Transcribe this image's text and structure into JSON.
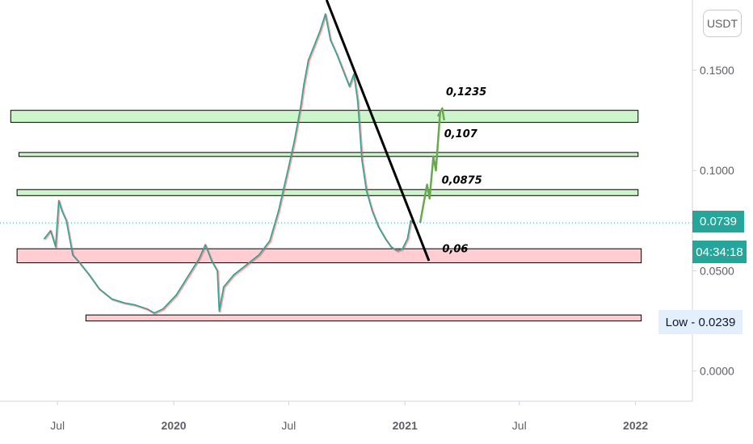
{
  "symbol": {
    "currency_label": "USDT"
  },
  "badges": {
    "last_price": "0.0739",
    "countdown": "04:34:18",
    "low_label": "Low",
    "low_value": "0.0239",
    "low_text": "Low - 0.0239"
  },
  "colors": {
    "up": "#26a69a",
    "down": "#ef5350",
    "support_zone": "#ffcdd2",
    "resistance_zone": "#ccf5cc",
    "trendline": "#000000",
    "projection": "#6aa84f",
    "last_price_line": "#26a69a"
  },
  "chart_data": {
    "type": "line",
    "title": "",
    "xlabel": "",
    "ylabel": "",
    "y_scale": "linear",
    "ylim": [
      -0.015,
      0.185
    ],
    "xlim": [
      "2019-04-01",
      "2022-04-01"
    ],
    "x_ticks": [
      {
        "date": "2019-07-01",
        "label": "Jul",
        "bold": false
      },
      {
        "date": "2020-01-01",
        "label": "2020",
        "bold": true
      },
      {
        "date": "2020-07-01",
        "label": "Jul",
        "bold": false
      },
      {
        "date": "2021-01-01",
        "label": "2021",
        "bold": true
      },
      {
        "date": "2021-07-01",
        "label": "Jul",
        "bold": false
      },
      {
        "date": "2022-01-01",
        "label": "2022",
        "bold": true
      }
    ],
    "y_ticks": [
      {
        "value": 0.15,
        "label": "0.1500"
      },
      {
        "value": 0.1,
        "label": "0.1000"
      },
      {
        "value": 0.05,
        "label": "0.0500"
      },
      {
        "value": 0.0,
        "label": "0.0000"
      }
    ],
    "series": [
      {
        "values": [
          [
            "2019-06-10",
            0.066
          ],
          [
            "2019-06-20",
            0.07
          ],
          [
            "2019-06-28",
            0.062
          ],
          [
            "2019-07-03",
            0.085
          ],
          [
            "2019-07-08",
            0.08
          ],
          [
            "2019-07-15",
            0.075
          ],
          [
            "2019-07-25",
            0.058
          ],
          [
            "2019-08-05",
            0.054
          ],
          [
            "2019-08-20",
            0.048
          ],
          [
            "2019-09-05",
            0.041
          ],
          [
            "2019-09-25",
            0.036
          ],
          [
            "2019-10-15",
            0.034
          ],
          [
            "2019-11-01",
            0.033
          ],
          [
            "2019-11-20",
            0.031
          ],
          [
            "2019-12-01",
            0.029
          ],
          [
            "2019-12-15",
            0.031
          ],
          [
            "2020-01-05",
            0.038
          ],
          [
            "2020-01-25",
            0.048
          ],
          [
            "2020-02-10",
            0.056
          ],
          [
            "2020-02-20",
            0.063
          ],
          [
            "2020-03-01",
            0.055
          ],
          [
            "2020-03-10",
            0.05
          ],
          [
            "2020-03-13",
            0.03
          ],
          [
            "2020-03-20",
            0.042
          ],
          [
            "2020-04-05",
            0.048
          ],
          [
            "2020-04-25",
            0.053
          ],
          [
            "2020-05-15",
            0.058
          ],
          [
            "2020-06-01",
            0.065
          ],
          [
            "2020-06-15",
            0.08
          ],
          [
            "2020-07-01",
            0.102
          ],
          [
            "2020-07-10",
            0.115
          ],
          [
            "2020-07-20",
            0.132
          ],
          [
            "2020-07-25",
            0.143
          ],
          [
            "2020-08-01",
            0.155
          ],
          [
            "2020-08-10",
            0.162
          ],
          [
            "2020-08-20",
            0.17
          ],
          [
            "2020-08-28",
            0.178
          ],
          [
            "2020-09-05",
            0.165
          ],
          [
            "2020-09-15",
            0.158
          ],
          [
            "2020-09-25",
            0.15
          ],
          [
            "2020-10-05",
            0.142
          ],
          [
            "2020-10-12",
            0.148
          ],
          [
            "2020-10-18",
            0.135
          ],
          [
            "2020-10-25",
            0.105
          ],
          [
            "2020-11-01",
            0.09
          ],
          [
            "2020-11-10",
            0.08
          ],
          [
            "2020-11-20",
            0.072
          ],
          [
            "2020-12-01",
            0.066
          ],
          [
            "2020-12-10",
            0.062
          ],
          [
            "2020-12-20",
            0.06
          ],
          [
            "2020-12-28",
            0.061
          ],
          [
            "2021-01-05",
            0.066
          ],
          [
            "2021-01-10",
            0.075
          ],
          [
            "2021-01-14",
            0.0739
          ]
        ]
      }
    ],
    "zones": [
      {
        "type": "resistance",
        "from": "2019-04-18",
        "to": "2022-01-05",
        "low": 0.124,
        "high": 0.13
      },
      {
        "type": "resistance",
        "from": "2019-05-01",
        "to": "2022-01-05",
        "low": 0.107,
        "high": 0.109
      },
      {
        "type": "resistance",
        "from": "2019-04-28",
        "to": "2022-01-05",
        "low": 0.0875,
        "high": 0.0905
      },
      {
        "type": "support",
        "from": "2019-04-28",
        "to": "2022-01-10",
        "low": 0.054,
        "high": 0.061
      },
      {
        "type": "support",
        "from": "2019-08-15",
        "to": "2022-01-10",
        "low": 0.025,
        "high": 0.028
      }
    ],
    "trendline": {
      "from": [
        "2020-08-30",
        0.185
      ],
      "to": [
        "2021-02-08",
        0.055
      ]
    },
    "projection": [
      [
        "2021-01-25",
        0.0739
      ],
      [
        "2021-02-05",
        0.093
      ],
      [
        "2021-02-09",
        0.086
      ],
      [
        "2021-02-15",
        0.107
      ],
      [
        "2021-02-19",
        0.1
      ],
      [
        "2021-02-26",
        0.13
      ],
      [
        "2021-02-22",
        0.127
      ],
      [
        "2021-03-01",
        0.131
      ],
      [
        "2021-03-04",
        0.125
      ]
    ],
    "annotations": [
      {
        "label": "0,1235",
        "date": "2021-03-07",
        "value": 0.1375
      },
      {
        "label": "0,107",
        "date": "2021-03-04",
        "value": 0.1165
      },
      {
        "label": "0,0875",
        "date": "2021-02-28",
        "value": 0.0935
      },
      {
        "label": "0,06",
        "date": "2021-03-01",
        "value": 0.0592
      }
    ],
    "last_price": 0.0739,
    "low": 0.0239,
    "grid": false,
    "legend": "none"
  }
}
